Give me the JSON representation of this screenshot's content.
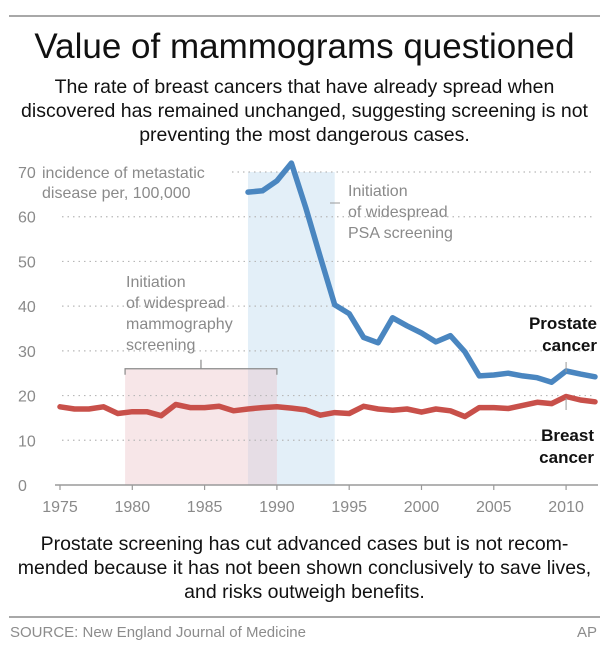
{
  "header": {
    "title": "Value of mammograms questioned",
    "subtitle": "The rate of breast cancers that have already spread when discovered has remained unchanged, suggesting screening is not preventing the most dangerous cases."
  },
  "footer": {
    "note": "Prostate screening has cut advanced cases but is not recom-mended because it has not been shown conclusively to save lives, and risks outweigh benefits.",
    "source": "SOURCE: New England Journal of Medicine",
    "credit": "AP"
  },
  "colors": {
    "prostate": "#4a86c0",
    "breast": "#c8504a",
    "psa_band": "#e3eff8",
    "mammo_band": "#f7e6e8",
    "overlap_band": "#e6dde5",
    "axis_text": "#8a8a8a",
    "grid": "#b8b8b8"
  },
  "chart_data": {
    "type": "line",
    "title": "Value of mammograms questioned",
    "ylabel": "incidence of metastatic disease per, 100,000",
    "ylabel_lines": [
      "incidence of metastatic",
      "disease per, 100,000"
    ],
    "xlabel": "",
    "xlim": [
      1975,
      2012
    ],
    "ylim": [
      0,
      70
    ],
    "grid": true,
    "x_ticks": [
      1975,
      1980,
      1985,
      1990,
      1995,
      2000,
      2005,
      2010
    ],
    "y_ticks": [
      0,
      10,
      20,
      30,
      40,
      50,
      60,
      70
    ],
    "series": [
      {
        "name": "Prostate cancer",
        "label_lines": [
          "Prostate",
          "cancer"
        ],
        "color": "#4a86c0",
        "x": [
          1988,
          1989,
          1990,
          1991,
          1992,
          1993,
          1994,
          1995,
          1996,
          1997,
          1998,
          1999,
          2000,
          2001,
          2002,
          2003,
          2004,
          2005,
          2006,
          2007,
          2008,
          2009,
          2010,
          2011,
          2012
        ],
        "values": [
          65.5,
          65.8,
          68,
          72,
          62,
          51,
          40.3,
          38.3,
          33,
          31.8,
          37.4,
          35.6,
          34,
          32,
          33.4,
          29.8,
          24.4,
          24.6,
          25,
          24.4,
          24,
          23,
          25.5,
          24.8,
          24.2
        ]
      },
      {
        "name": "Breast cancer",
        "label_lines": [
          "Breast",
          "cancer"
        ],
        "color": "#c8504a",
        "x": [
          1975,
          1976,
          1977,
          1978,
          1979,
          1980,
          1981,
          1982,
          1983,
          1984,
          1985,
          1986,
          1987,
          1988,
          1989,
          1990,
          1991,
          1992,
          1993,
          1994,
          1995,
          1996,
          1997,
          1998,
          1999,
          2000,
          2001,
          2002,
          2003,
          2004,
          2005,
          2006,
          2007,
          2008,
          2009,
          2010,
          2011,
          2012
        ],
        "values": [
          17.5,
          17,
          17,
          17.5,
          16,
          16.4,
          16.4,
          15.5,
          18,
          17.3,
          17.3,
          17.6,
          16.6,
          17,
          17.3,
          17.5,
          17.2,
          16.8,
          15.6,
          16.2,
          16,
          17.6,
          17,
          16.7,
          17,
          16.3,
          17,
          16.6,
          15.3,
          17.3,
          17.3,
          17.1,
          17.8,
          18.5,
          18.2,
          19.8,
          19,
          18.6
        ]
      }
    ],
    "annotations": [
      {
        "id": "mammography",
        "text_lines": [
          "Initiation",
          "of widespread",
          "mammography",
          "screening"
        ],
        "span": [
          1979.5,
          1990
        ],
        "band_top": 26
      },
      {
        "id": "psa",
        "text_lines": [
          "Initiation",
          "of widespread",
          "PSA screening"
        ],
        "span": [
          1988,
          1994
        ],
        "band_top": 70
      }
    ],
    "series_label_marker_year": 2010
  }
}
